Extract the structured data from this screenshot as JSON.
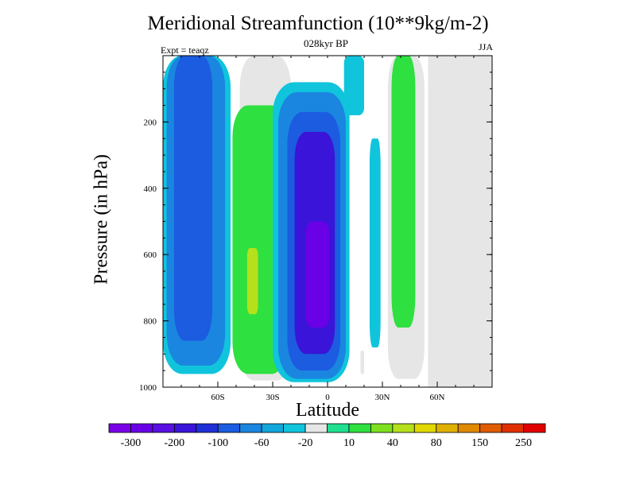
{
  "chart_data": {
    "type": "contour",
    "title": "Meridional Streamfunction (10**9kg/m-2)",
    "subtitle": "028kyr BP",
    "left_label": "Expt = teaqz",
    "right_label": "JJA",
    "xlabel": "Latitude",
    "ylabel": "Pressure (in hPa)",
    "xlim": [
      -90,
      90
    ],
    "ylim": [
      1000,
      0
    ],
    "x_ticks": [
      {
        "value": -60,
        "label": "60S"
      },
      {
        "value": -30,
        "label": "30S"
      },
      {
        "value": 0,
        "label": "0"
      },
      {
        "value": 30,
        "label": "30N"
      },
      {
        "value": 60,
        "label": "60N"
      }
    ],
    "y_ticks": [
      {
        "value": 200,
        "label": "200"
      },
      {
        "value": 400,
        "label": "400"
      },
      {
        "value": 600,
        "label": "600"
      },
      {
        "value": 800,
        "label": "800"
      },
      {
        "value": 1000,
        "label": "1000"
      }
    ],
    "missing_color": "#e6e6e6",
    "colorbar": {
      "colors": [
        "#7a00e6",
        "#6a00e6",
        "#5a10e0",
        "#3a14d8",
        "#2030d6",
        "#1c5ce0",
        "#1a86e0",
        "#11a6dc",
        "#10c4dc",
        "#e6e6e6",
        "#1ee090",
        "#2ee040",
        "#7ee020",
        "#b4e01c",
        "#e0d800",
        "#e0b000",
        "#e08800",
        "#e05c00",
        "#e03000",
        "#e00000"
      ],
      "labels": [
        "-300",
        "-200",
        "-100",
        "-60",
        "-20",
        "10",
        "40",
        "80",
        "150",
        "250"
      ]
    },
    "regions": [
      {
        "lat": [
          -90,
          -53
        ],
        "p": [
          0,
          960
        ],
        "value": -20
      },
      {
        "lat": [
          -88,
          -56
        ],
        "p": [
          0,
          935
        ],
        "value": -60
      },
      {
        "lat": [
          -84,
          -63
        ],
        "p": [
          0,
          860
        ],
        "value": -100
      },
      {
        "lat": [
          -48,
          -20
        ],
        "p": [
          0,
          980
        ],
        "value": 10
      },
      {
        "lat": [
          -52,
          -22
        ],
        "p": [
          150,
          960
        ],
        "value": 40
      },
      {
        "lat": [
          -44,
          -38
        ],
        "p": [
          580,
          780
        ],
        "value": 80
      },
      {
        "lat": [
          -30,
          12
        ],
        "p": [
          80,
          985
        ],
        "value": -20
      },
      {
        "lat": [
          -27,
          10
        ],
        "p": [
          110,
          975
        ],
        "value": -60
      },
      {
        "lat": [
          -22,
          7
        ],
        "p": [
          170,
          950
        ],
        "value": -100
      },
      {
        "lat": [
          -18,
          4
        ],
        "p": [
          230,
          900
        ],
        "value": -200
      },
      {
        "lat": [
          -12,
          1
        ],
        "p": [
          500,
          820
        ],
        "value": -300
      },
      {
        "lat": [
          9,
          20
        ],
        "p": [
          0,
          180
        ],
        "value": -20
      },
      {
        "lat": [
          23,
          29
        ],
        "p": [
          250,
          880
        ],
        "value": -20
      },
      {
        "lat": [
          18,
          20
        ],
        "p": [
          890,
          960
        ],
        "value": 10
      },
      {
        "lat": [
          33,
          53
        ],
        "p": [
          0,
          975
        ],
        "value": 10
      },
      {
        "lat": [
          35,
          48
        ],
        "p": [
          0,
          820
        ],
        "value": 40
      }
    ]
  }
}
